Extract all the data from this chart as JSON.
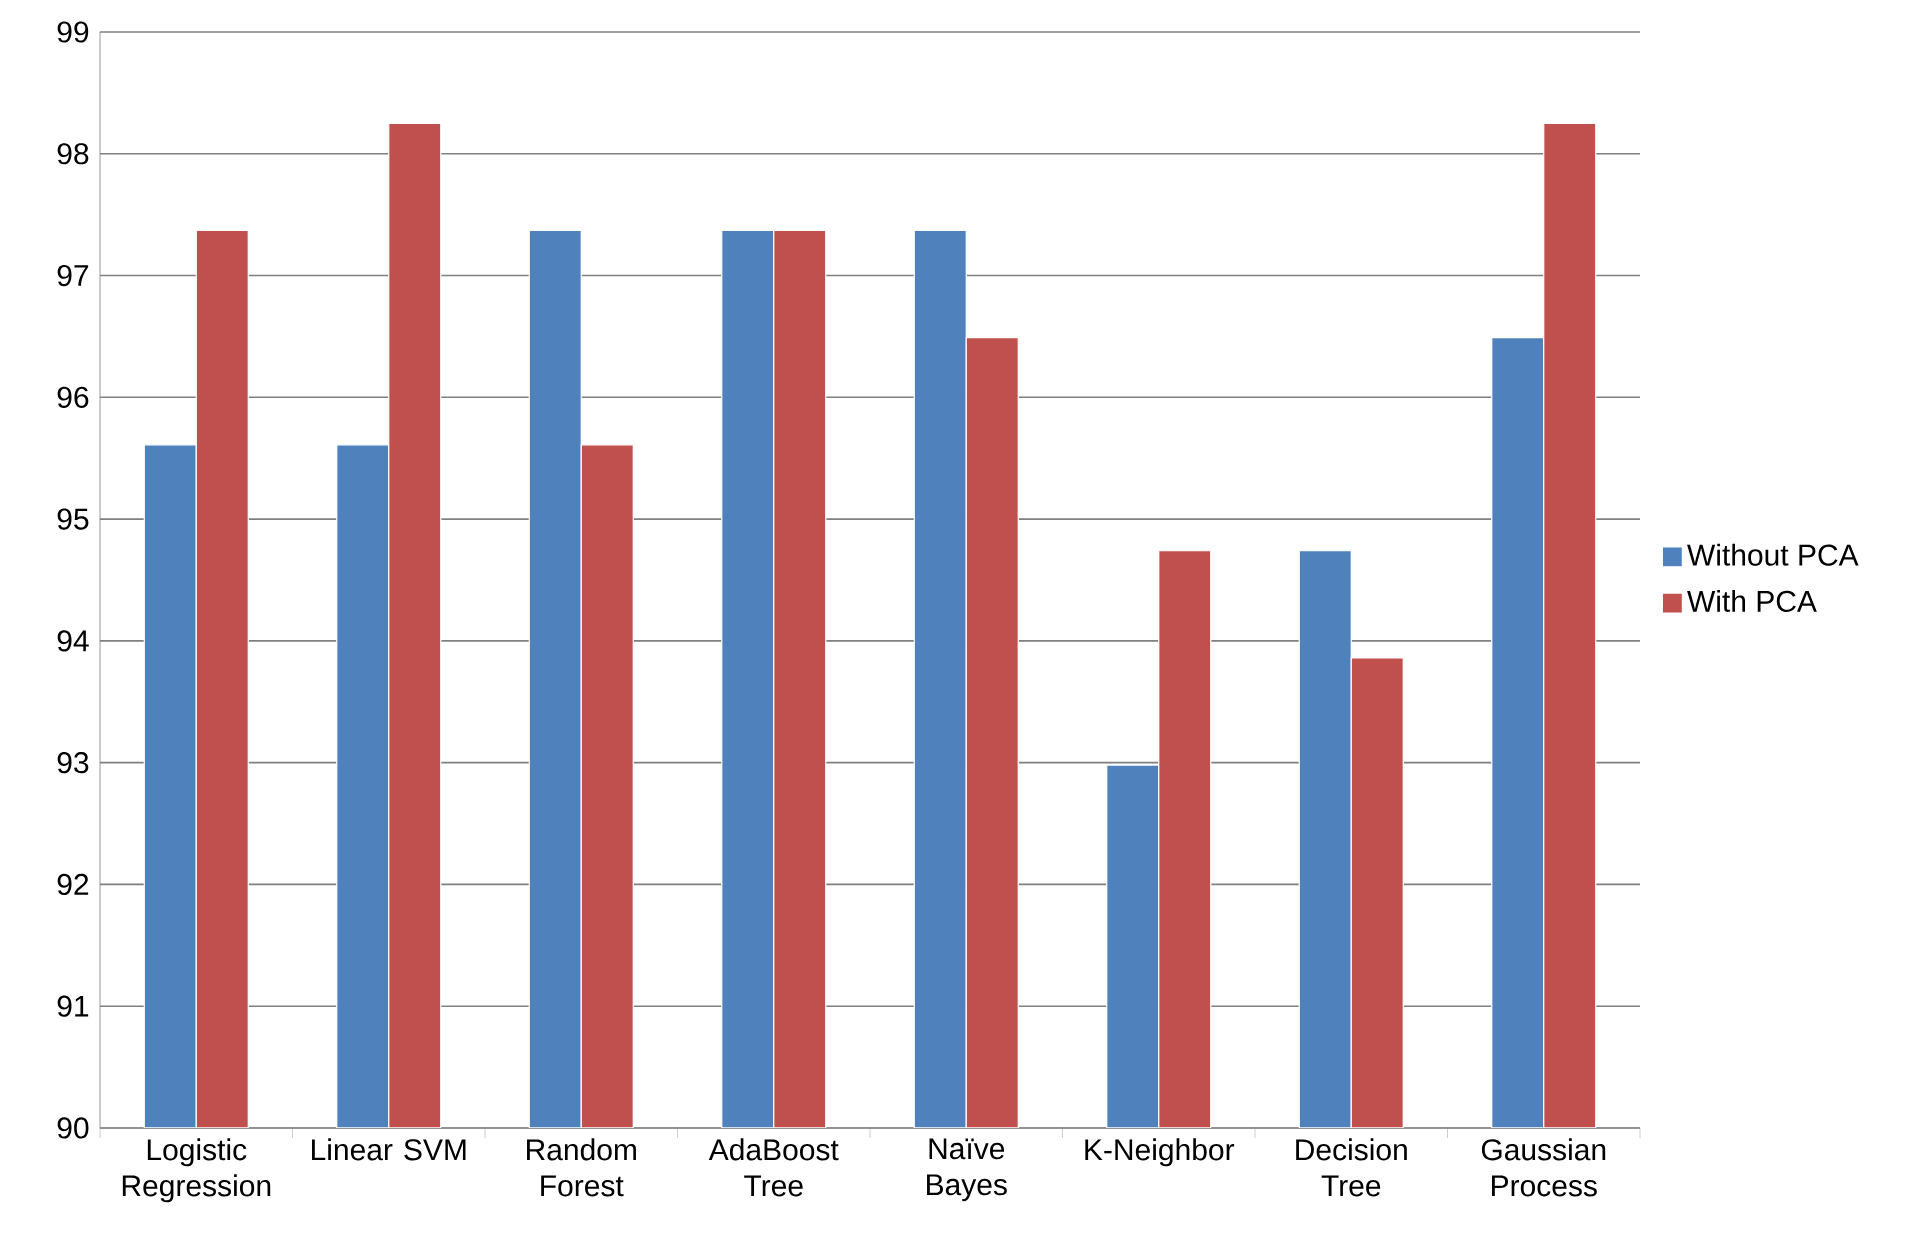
{
  "chart_data": {
    "type": "bar",
    "categories": [
      "Logistic Regression",
      "Linear SVM",
      "Random Forest",
      "AdaBoost Tree",
      "Naïve Bayes",
      "K-Neighbor",
      "Decision Tree",
      "Gaussian Process"
    ],
    "series": [
      {
        "name": "Without PCA",
        "color": "#4f81bd",
        "values": [
          95.61,
          95.61,
          97.37,
          97.37,
          97.37,
          92.98,
          94.74,
          96.49
        ]
      },
      {
        "name": "With PCA",
        "color": "#c0504d",
        "values": [
          97.37,
          98.25,
          95.61,
          97.37,
          96.49,
          94.74,
          93.86,
          98.25
        ]
      }
    ],
    "ylim": [
      90,
      99
    ],
    "yticks": [
      90,
      91,
      92,
      93,
      94,
      95,
      96,
      97,
      98,
      99
    ],
    "grid": "y",
    "legend": "right"
  }
}
